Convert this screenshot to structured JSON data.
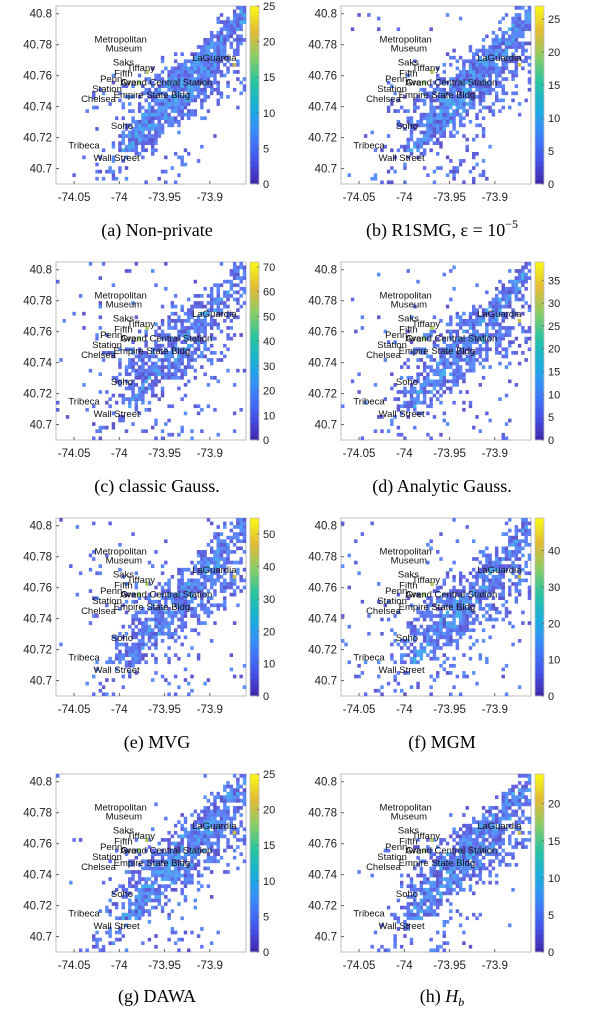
{
  "colors": {
    "colormap": [
      "#3e26a8",
      "#4656ec",
      "#3a86fa",
      "#1aaede",
      "#26c4a0",
      "#8acc66",
      "#e3b935",
      "#f9fb15"
    ],
    "axes_edge": "#bdbdbd",
    "background": "#ffffff"
  },
  "chart_data": [
    {
      "type": "heatmap",
      "caption": "(a) Non-private",
      "xlim": [
        -74.07,
        -73.86
      ],
      "ylim": [
        40.69,
        40.805
      ],
      "x_ticks": [
        -74.05,
        -74,
        -73.95,
        -73.9
      ],
      "x_tick_labels": [
        "-74.05",
        "-74",
        "-73.95",
        "-73.9"
      ],
      "y_ticks": [
        40.7,
        40.72,
        40.74,
        40.76,
        40.78,
        40.8
      ],
      "y_tick_labels": [
        "40.7",
        "40.72",
        "40.74",
        "40.76",
        "40.78",
        "40.8"
      ],
      "colorbar": {
        "min": 0,
        "max": 25,
        "ticks": [
          0,
          5,
          10,
          15,
          20,
          25
        ],
        "tick_labels": [
          "0",
          "5",
          "10",
          "15",
          "20",
          "25"
        ]
      },
      "noise": 0.0,
      "seed": 11,
      "hot_cells": 3
    },
    {
      "type": "heatmap",
      "caption": "(b) R1SMG, ε = 10",
      "caption_sup": "−5",
      "xlim": [
        -74.07,
        -73.86
      ],
      "ylim": [
        40.69,
        40.805
      ],
      "x_ticks": [
        -74.05,
        -74,
        -73.95,
        -73.9
      ],
      "x_tick_labels": [
        "-74.05",
        "-74",
        "-73.95",
        "-73.9"
      ],
      "y_ticks": [
        40.7,
        40.72,
        40.74,
        40.76,
        40.78,
        40.8
      ],
      "y_tick_labels": [
        "40.7",
        "40.72",
        "40.74",
        "40.76",
        "40.78",
        "40.8"
      ],
      "colorbar": {
        "min": 0,
        "max": 27,
        "ticks": [
          0,
          5,
          10,
          15,
          20,
          25
        ],
        "tick_labels": [
          "0",
          "5",
          "10",
          "15",
          "20",
          "25"
        ]
      },
      "noise": 0.08,
      "seed": 23,
      "hot_cells": 3
    },
    {
      "type": "heatmap",
      "caption": "(c) classic Gauss.",
      "xlim": [
        -74.07,
        -73.86
      ],
      "ylim": [
        40.69,
        40.805
      ],
      "x_ticks": [
        -74.05,
        -74,
        -73.95,
        -73.9
      ],
      "x_tick_labels": [
        "-74.05",
        "-74",
        "-73.95",
        "-73.9"
      ],
      "y_ticks": [
        40.7,
        40.72,
        40.74,
        40.76,
        40.78,
        40.8
      ],
      "y_tick_labels": [
        "40.7",
        "40.72",
        "40.74",
        "40.76",
        "40.78",
        "40.8"
      ],
      "colorbar": {
        "min": 0,
        "max": 72,
        "ticks": [
          0,
          10,
          20,
          30,
          40,
          50,
          60,
          70
        ],
        "tick_labels": [
          "0",
          "10",
          "20",
          "30",
          "40",
          "50",
          "60",
          "70"
        ]
      },
      "noise": 0.45,
      "seed": 37,
      "hot_cells": 2
    },
    {
      "type": "heatmap",
      "caption": "(d) Analytic Gauss.",
      "xlim": [
        -74.07,
        -73.86
      ],
      "ylim": [
        40.69,
        40.805
      ],
      "x_ticks": [
        -74.05,
        -74,
        -73.95,
        -73.9
      ],
      "x_tick_labels": [
        "-74.05",
        "-74",
        "-73.95",
        "-73.9"
      ],
      "y_ticks": [
        40.7,
        40.72,
        40.74,
        40.76,
        40.78,
        40.8
      ],
      "y_tick_labels": [
        "40.7",
        "40.72",
        "40.74",
        "40.76",
        "40.78",
        "40.8"
      ],
      "colorbar": {
        "min": 0,
        "max": 39,
        "ticks": [
          0,
          5,
          10,
          15,
          20,
          25,
          30,
          35
        ],
        "tick_labels": [
          "0",
          "5",
          "10",
          "15",
          "20",
          "25",
          "30",
          "35"
        ]
      },
      "noise": 0.3,
      "seed": 41,
      "hot_cells": 3
    },
    {
      "type": "heatmap",
      "caption": "(e) MVG",
      "xlim": [
        -74.07,
        -73.86
      ],
      "ylim": [
        40.69,
        40.805
      ],
      "x_ticks": [
        -74.05,
        -74,
        -73.95,
        -73.9
      ],
      "x_tick_labels": [
        "-74.05",
        "-74",
        "-73.95",
        "-73.9"
      ],
      "y_ticks": [
        40.7,
        40.72,
        40.74,
        40.76,
        40.78,
        40.8
      ],
      "y_tick_labels": [
        "40.7",
        "40.72",
        "40.74",
        "40.76",
        "40.78",
        "40.8"
      ],
      "colorbar": {
        "min": 0,
        "max": 55,
        "ticks": [
          0,
          10,
          20,
          30,
          40,
          50
        ],
        "tick_labels": [
          "0",
          "10",
          "20",
          "30",
          "40",
          "50"
        ]
      },
      "noise": 0.38,
      "seed": 53,
      "hot_cells": 3
    },
    {
      "type": "heatmap",
      "caption": "(f) MGM",
      "xlim": [
        -74.07,
        -73.86
      ],
      "ylim": [
        40.69,
        40.805
      ],
      "x_ticks": [
        -74.05,
        -74,
        -73.95,
        -73.9
      ],
      "x_tick_labels": [
        "-74.05",
        "-74",
        "-73.95",
        "-73.9"
      ],
      "y_ticks": [
        40.7,
        40.72,
        40.74,
        40.76,
        40.78,
        40.8
      ],
      "y_tick_labels": [
        "40.7",
        "40.72",
        "40.74",
        "40.76",
        "40.78",
        "40.8"
      ],
      "colorbar": {
        "min": 0,
        "max": 49,
        "ticks": [
          0,
          10,
          20,
          30,
          40
        ],
        "tick_labels": [
          "0",
          "10",
          "20",
          "30",
          "40"
        ]
      },
      "noise": 0.38,
      "seed": 67,
      "hot_cells": 3
    },
    {
      "type": "heatmap",
      "caption": "(g) DAWA",
      "xlim": [
        -74.07,
        -73.86
      ],
      "ylim": [
        40.69,
        40.805
      ],
      "x_ticks": [
        -74.05,
        -74,
        -73.95,
        -73.9
      ],
      "x_tick_labels": [
        "-74.05",
        "-74",
        "-73.95",
        "-73.9"
      ],
      "y_ticks": [
        40.7,
        40.72,
        40.74,
        40.76,
        40.78,
        40.8
      ],
      "y_tick_labels": [
        "40.7",
        "40.72",
        "40.74",
        "40.76",
        "40.78",
        "40.8"
      ],
      "colorbar": {
        "min": 0,
        "max": 25,
        "ticks": [
          0,
          5,
          10,
          15,
          20,
          25
        ],
        "tick_labels": [
          "0",
          "5",
          "10",
          "15",
          "20",
          "25"
        ]
      },
      "noise": 0.1,
      "seed": 79,
      "hot_cells": 3
    },
    {
      "type": "heatmap",
      "caption": "(h) H",
      "caption_sub": "b",
      "xlim": [
        -74.07,
        -73.86
      ],
      "ylim": [
        40.69,
        40.805
      ],
      "x_ticks": [
        -74.05,
        -74,
        -73.95,
        -73.9
      ],
      "x_tick_labels": [
        "-74.05",
        "-74",
        "-73.95",
        "-73.9"
      ],
      "y_ticks": [
        40.7,
        40.72,
        40.74,
        40.76,
        40.78,
        40.8
      ],
      "y_tick_labels": [
        "40.7",
        "40.72",
        "40.74",
        "40.76",
        "40.78",
        "40.8"
      ],
      "colorbar": {
        "min": 0,
        "max": 24,
        "ticks": [
          0,
          5,
          10,
          15,
          20
        ],
        "tick_labels": [
          "0",
          "5",
          "10",
          "15",
          "20"
        ]
      },
      "noise": 0.05,
      "seed": 97,
      "hot_cells": 3
    }
  ],
  "landmarks": [
    {
      "label": "Metropolitan",
      "lon": -73.9985,
      "lat": 40.7815
    },
    {
      "label": "Museum",
      "lon": -73.995,
      "lat": 40.7755
    },
    {
      "label": "LaGuardia",
      "lon": -73.895,
      "lat": 40.7695
    },
    {
      "label": "Saks",
      "lon": -73.9955,
      "lat": 40.7665
    },
    {
      "label": "Tiffany",
      "lon": -73.976,
      "lat": 40.763
    },
    {
      "label": "Fifth",
      "lon": -73.9955,
      "lat": 40.7595
    },
    {
      "label": "Penn",
      "lon": -74.009,
      "lat": 40.756
    },
    {
      "label": "Ave",
      "lon": -73.99,
      "lat": 40.7535
    },
    {
      "label": "Grand Central Station",
      "lon": -73.948,
      "lat": 40.7535
    },
    {
      "label": "Station",
      "lon": -74.0135,
      "lat": 40.7495
    },
    {
      "label": "Empire State Bldg",
      "lon": -73.964,
      "lat": 40.7455
    },
    {
      "label": "Chelsea",
      "lon": -74.023,
      "lat": 40.743
    },
    {
      "label": "Soho",
      "lon": -73.997,
      "lat": 40.7255
    },
    {
      "label": "Tribeca",
      "lon": -74.039,
      "lat": 40.713
    },
    {
      "label": "Wall Street",
      "lon": -74.003,
      "lat": 40.705
    }
  ]
}
